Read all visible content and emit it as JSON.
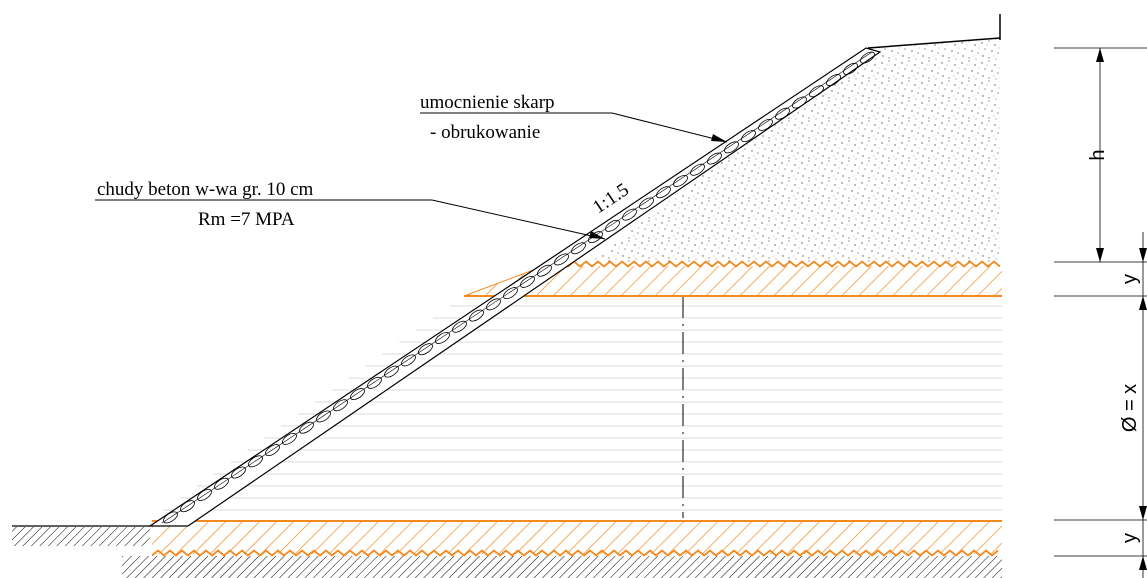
{
  "labels": {
    "revetment_line1": "umocnienie skarp",
    "revetment_line2": "- obrukowanie",
    "concrete_line1": "chudy beton w-wa gr. 10 cm",
    "concrete_line2": "Rm =7 MPA",
    "slope": "1:1.5"
  },
  "dimensions": {
    "h": "h",
    "y_top": "y",
    "diameter": "Ø = x",
    "y_bottom": "y"
  },
  "colors": {
    "hatch_orange": "#f28a1e",
    "line": "#000000",
    "fill_lines": "#cfcfcf"
  }
}
